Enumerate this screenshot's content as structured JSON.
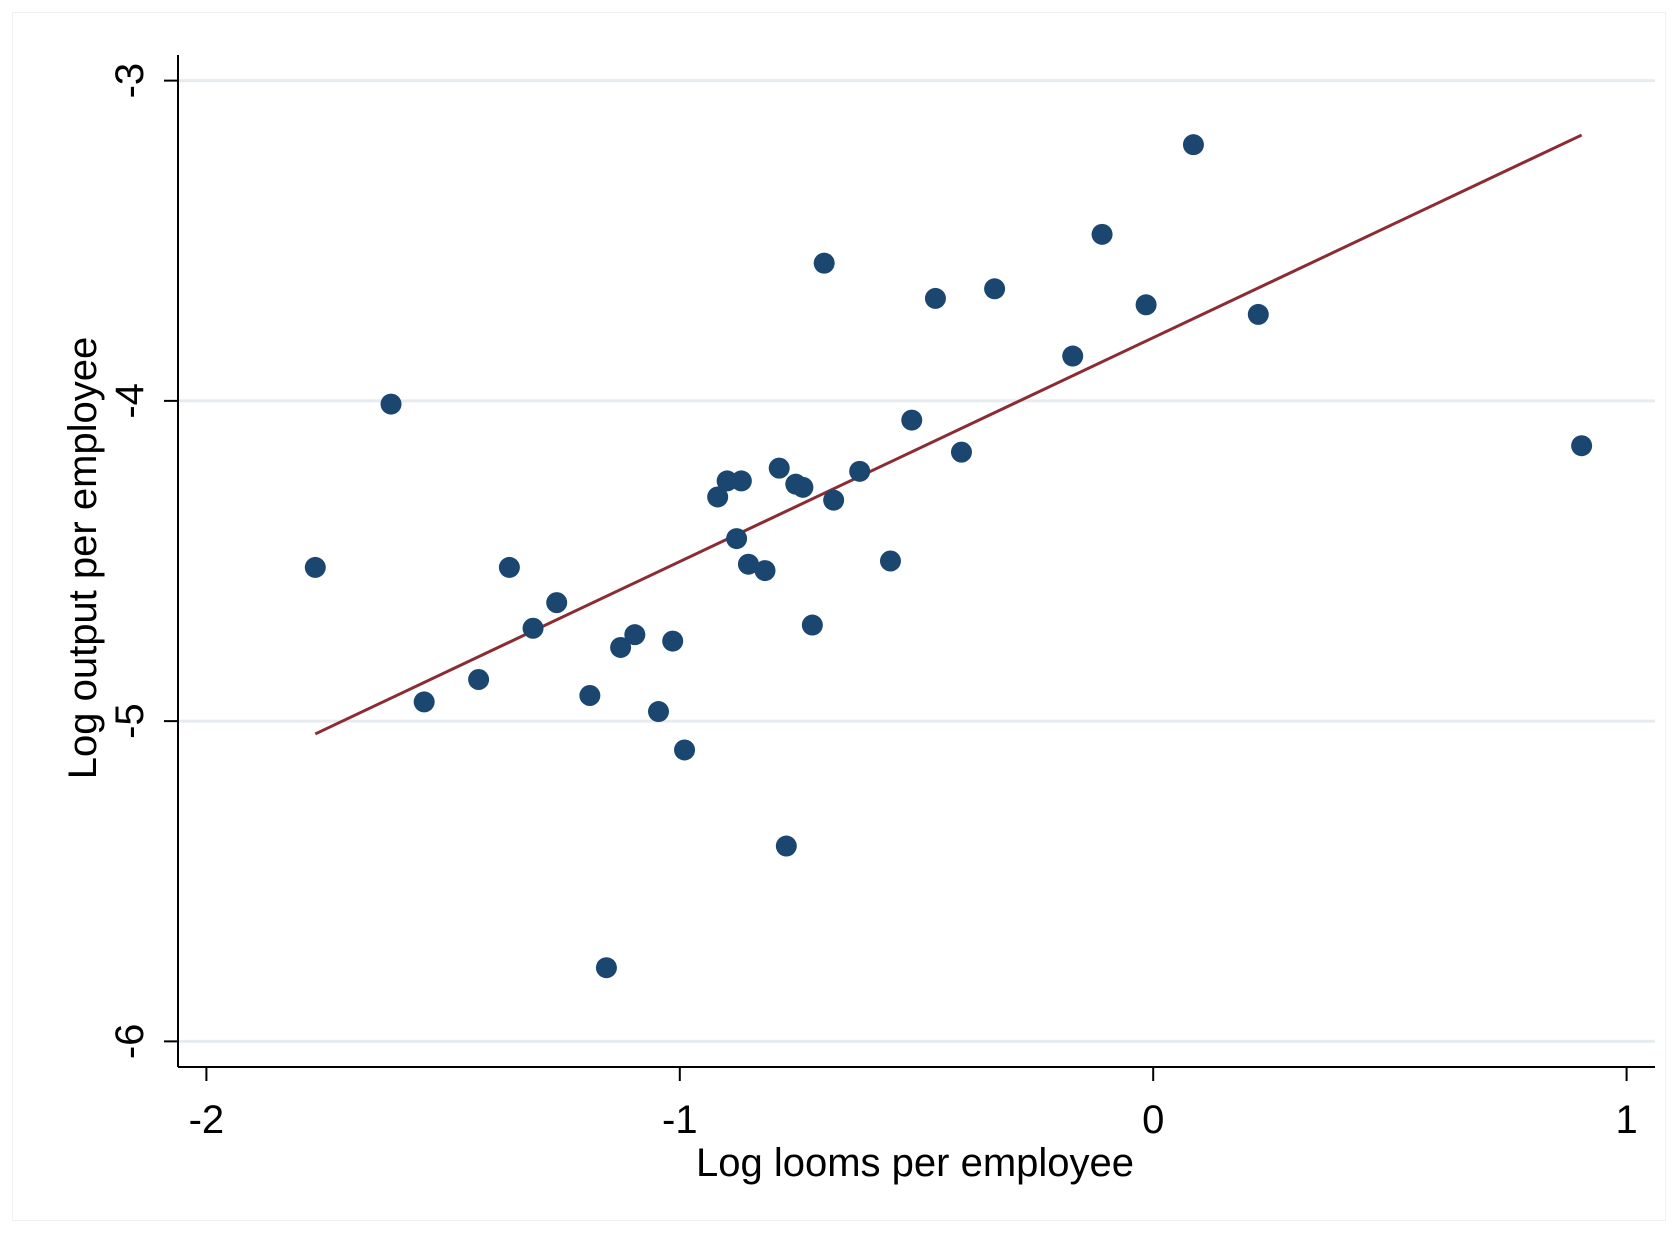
{
  "chart_data": {
    "type": "scatter",
    "title": "",
    "xlabel": "Log looms per employee",
    "ylabel": "Log output per employee",
    "xlim": [
      -2.06,
      1.06
    ],
    "ylim": [
      -6.08,
      -2.92
    ],
    "x_ticks": [
      -2,
      -1,
      0,
      1
    ],
    "y_ticks": [
      -3,
      -4,
      -5,
      -6
    ],
    "x_tick_labels": [
      "-2",
      "-1",
      "0",
      "1"
    ],
    "y_tick_labels": [
      "-3",
      "-4",
      "-5",
      "-6"
    ],
    "grid": true,
    "colors": {
      "points": "#1a4670",
      "fit_line": "#8b2c35",
      "grid": "#e6ebef",
      "axis": "#000000"
    },
    "series": [
      {
        "type": "scatter",
        "points": [
          {
            "x": -1.77,
            "y": -4.52
          },
          {
            "x": -1.61,
            "y": -4.01
          },
          {
            "x": -1.54,
            "y": -4.94
          },
          {
            "x": -1.425,
            "y": -4.87
          },
          {
            "x": -1.36,
            "y": -4.52
          },
          {
            "x": -1.31,
            "y": -4.71
          },
          {
            "x": -1.26,
            "y": -4.63
          },
          {
            "x": -1.19,
            "y": -4.92
          },
          {
            "x": -1.155,
            "y": -5.77
          },
          {
            "x": -1.125,
            "y": -4.77
          },
          {
            "x": -1.095,
            "y": -4.73
          },
          {
            "x": -1.045,
            "y": -4.97
          },
          {
            "x": -1.015,
            "y": -4.75
          },
          {
            "x": -0.99,
            "y": -5.09
          },
          {
            "x": -0.92,
            "y": -4.3
          },
          {
            "x": -0.9,
            "y": -4.25
          },
          {
            "x": -0.88,
            "y": -4.43
          },
          {
            "x": -0.87,
            "y": -4.25
          },
          {
            "x": -0.855,
            "y": -4.51
          },
          {
            "x": -0.82,
            "y": -4.53
          },
          {
            "x": -0.79,
            "y": -4.21
          },
          {
            "x": -0.775,
            "y": -5.39
          },
          {
            "x": -0.755,
            "y": -4.26
          },
          {
            "x": -0.74,
            "y": -4.27
          },
          {
            "x": -0.72,
            "y": -4.7
          },
          {
            "x": -0.695,
            "y": -3.57
          },
          {
            "x": -0.675,
            "y": -4.31
          },
          {
            "x": -0.62,
            "y": -4.22
          },
          {
            "x": -0.555,
            "y": -4.5
          },
          {
            "x": -0.51,
            "y": -4.06
          },
          {
            "x": -0.46,
            "y": -3.68
          },
          {
            "x": -0.405,
            "y": -4.16
          },
          {
            "x": -0.335,
            "y": -3.65
          },
          {
            "x": -0.17,
            "y": -3.86
          },
          {
            "x": -0.108,
            "y": -3.48
          },
          {
            "x": -0.015,
            "y": -3.7
          },
          {
            "x": 0.085,
            "y": -3.2
          },
          {
            "x": 0.222,
            "y": -3.73
          },
          {
            "x": 0.905,
            "y": -4.14
          }
        ]
      },
      {
        "type": "line",
        "x": [
          -1.77,
          0.905
        ],
        "y": [
          -5.04,
          -3.17
        ]
      }
    ]
  }
}
